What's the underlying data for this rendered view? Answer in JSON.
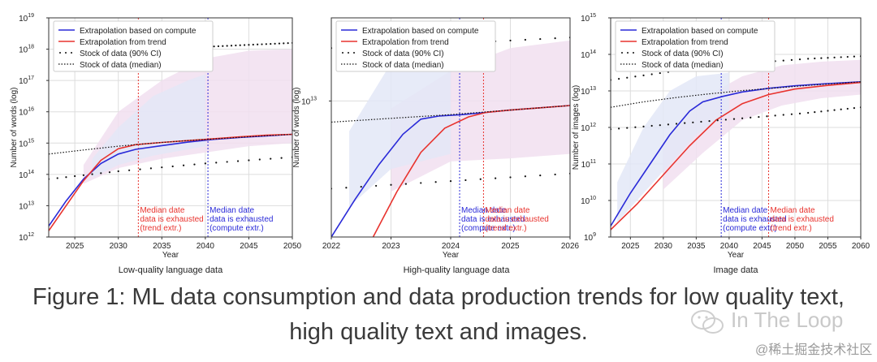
{
  "chart_data": [
    {
      "type": "line",
      "subtitle": "Low-quality language data",
      "xlabel": "Year",
      "ylabel": "Number of words (log)",
      "xlim": [
        2022,
        2050
      ],
      "ylim": [
        12,
        19
      ],
      "ylog": true,
      "xticks": [
        2025,
        2030,
        2035,
        2040,
        2045,
        2050
      ],
      "yticks": [
        12,
        13,
        14,
        15,
        16,
        17,
        18,
        19
      ],
      "grid": true,
      "legend": "top-left",
      "legend_entries": [
        "Extrapolation based on compute",
        "Extrapolation from trend",
        "Stock of data (90% CI)",
        "Stock of data (median)"
      ],
      "series": [
        {
          "name": "Extrapolation based on compute",
          "color": "#2a2ad8",
          "style": "solid",
          "points": [
            [
              2022,
              12.35
            ],
            [
              2024,
              13.15
            ],
            [
              2026,
              13.85
            ],
            [
              2028,
              14.35
            ],
            [
              2030,
              14.65
            ],
            [
              2032,
              14.8
            ],
            [
              2035,
              14.92
            ],
            [
              2038,
              15.03
            ],
            [
              2041,
              15.12
            ],
            [
              2044,
              15.18
            ],
            [
              2047,
              15.23
            ],
            [
              2050,
              15.28
            ]
          ]
        },
        {
          "name": "Extrapolation from trend",
          "color": "#e8332e",
          "style": "solid",
          "points": [
            [
              2022,
              12.2
            ],
            [
              2024,
              13.0
            ],
            [
              2026,
              13.8
            ],
            [
              2028,
              14.45
            ],
            [
              2030,
              14.82
            ],
            [
              2032,
              14.95
            ],
            [
              2035,
              15.02
            ],
            [
              2038,
              15.08
            ],
            [
              2041,
              15.14
            ],
            [
              2044,
              15.2
            ],
            [
              2047,
              15.25
            ],
            [
              2050,
              15.28
            ]
          ]
        },
        {
          "name": "Stock of data (median)",
          "color": "#111111",
          "style": "dotted",
          "points": [
            [
              2022,
              14.65
            ],
            [
              2026,
              14.78
            ],
            [
              2030,
              14.9
            ],
            [
              2034,
              15.0
            ],
            [
              2038,
              15.08
            ],
            [
              2042,
              15.15
            ],
            [
              2046,
              15.22
            ],
            [
              2050,
              15.28
            ]
          ]
        },
        {
          "name": "Stock of data (90% CI)",
          "color": "#111111",
          "style": "sparse-dots",
          "points": [
            [
              2022,
              13.85
            ],
            [
              2030,
              14.1
            ],
            [
              2040,
              14.35
            ],
            [
              2050,
              14.55
            ]
          ]
        },
        {
          "name": "Stock of data (90% CI)",
          "color": "#111111",
          "style": "sparse-dots",
          "points": [
            [
              2038,
              18.05
            ],
            [
              2042,
              18.1
            ],
            [
              2046,
              18.15
            ],
            [
              2050,
              18.2
            ]
          ]
        }
      ],
      "bands": [
        {
          "color": "#f1dff0",
          "points_upper": [
            [
              2026,
              14.3
            ],
            [
              2030,
              16.0
            ],
            [
              2035,
              17.0
            ],
            [
              2040,
              17.7
            ],
            [
              2045,
              17.95
            ],
            [
              2050,
              18.0
            ]
          ],
          "points_lower": [
            [
              2026,
              13.7
            ],
            [
              2030,
              14.2
            ],
            [
              2035,
              14.5
            ],
            [
              2040,
              14.7
            ],
            [
              2045,
              14.9
            ],
            [
              2050,
              15.0
            ]
          ]
        },
        {
          "color": "#e3e7f7",
          "points_upper": [
            [
              2027,
              14.5
            ],
            [
              2030,
              15.5
            ],
            [
              2034,
              16.5
            ],
            [
              2038,
              17.0
            ],
            [
              2040,
              17.2
            ]
          ],
          "points_lower": [
            [
              2027,
              13.9
            ],
            [
              2030,
              14.3
            ],
            [
              2034,
              14.6
            ],
            [
              2038,
              14.8
            ],
            [
              2040,
              14.9
            ]
          ]
        }
      ],
      "vlines": [
        {
          "x": 2032.3,
          "color": "#e8332e",
          "label": [
            "Median date",
            "data is exhausted",
            "(trend extr.)"
          ]
        },
        {
          "x": 2040.3,
          "color": "#2a2ad8",
          "label": [
            "Median date",
            "data is exhausted",
            "(compute extr.)"
          ]
        }
      ]
    },
    {
      "type": "line",
      "subtitle": "High-quality language data",
      "xlabel": "Year",
      "ylabel": "Number of words (log)",
      "xlim": [
        2022,
        2026
      ],
      "ylim": [
        12.1,
        13.55
      ],
      "ylog": true,
      "xticks": [
        2022,
        2023,
        2024,
        2025,
        2026
      ],
      "yticks": [
        13
      ],
      "grid": true,
      "legend": "top-left",
      "legend_entries": [
        "Extrapolation based on compute",
        "Extrapolation from trend",
        "Stock of data (90% CI)",
        "Stock of data (median)"
      ],
      "series": [
        {
          "name": "Extrapolation based on compute",
          "color": "#2a2ad8",
          "style": "solid",
          "points": [
            [
              2022,
              12.1
            ],
            [
              2022.4,
              12.35
            ],
            [
              2022.8,
              12.58
            ],
            [
              2023.2,
              12.78
            ],
            [
              2023.5,
              12.88
            ],
            [
              2023.8,
              12.9
            ],
            [
              2024.2,
              12.91
            ],
            [
              2024.6,
              12.925
            ],
            [
              2025,
              12.94
            ],
            [
              2025.5,
              12.955
            ],
            [
              2026,
              12.97
            ]
          ]
        },
        {
          "name": "Extrapolation from trend",
          "color": "#e8332e",
          "style": "solid",
          "points": [
            [
              2022.7,
              12.1
            ],
            [
              2023.1,
              12.4
            ],
            [
              2023.5,
              12.66
            ],
            [
              2023.9,
              12.82
            ],
            [
              2024.3,
              12.895
            ],
            [
              2024.6,
              12.925
            ],
            [
              2025,
              12.94
            ],
            [
              2025.5,
              12.955
            ],
            [
              2026,
              12.97
            ]
          ]
        },
        {
          "name": "Stock of data (median)",
          "color": "#111111",
          "style": "dotted",
          "points": [
            [
              2022,
              12.86
            ],
            [
              2023,
              12.885
            ],
            [
              2024,
              12.91
            ],
            [
              2025,
              12.94
            ],
            [
              2026,
              12.97
            ]
          ]
        },
        {
          "name": "Stock of data (90% CI)",
          "color": "#111111",
          "style": "sparse-dots",
          "points": [
            [
              2022,
              13.35
            ],
            [
              2024,
              13.38
            ],
            [
              2026,
              13.42
            ]
          ]
        },
        {
          "name": "Stock of data (90% CI)",
          "color": "#111111",
          "style": "sparse-dots",
          "points": [
            [
              2022,
              12.42
            ],
            [
              2024,
              12.47
            ],
            [
              2026,
              12.52
            ]
          ]
        }
      ],
      "bands": [
        {
          "color": "#f1dff0",
          "points_upper": [
            [
              2023,
              12.95
            ],
            [
              2024,
              13.2
            ],
            [
              2025,
              13.35
            ],
            [
              2026,
              13.4
            ]
          ],
          "points_lower": [
            [
              2023,
              12.4
            ],
            [
              2024,
              12.6
            ],
            [
              2025,
              12.62
            ],
            [
              2026,
              12.65
            ]
          ]
        },
        {
          "color": "#e3e7f7",
          "points_upper": [
            [
              2022.3,
              12.8
            ],
            [
              2023,
              13.25
            ],
            [
              2023.5,
              13.4
            ],
            [
              2024,
              13.45
            ]
          ],
          "points_lower": [
            [
              2022.3,
              12.3
            ],
            [
              2023,
              12.55
            ],
            [
              2023.5,
              12.6
            ],
            [
              2024,
              12.65
            ]
          ]
        }
      ],
      "vlines": [
        {
          "x": 2024.15,
          "color": "#2a2ad8",
          "label": [
            "Median date",
            "data is exhausted",
            "(compute extr.)"
          ]
        },
        {
          "x": 2024.55,
          "color": "#e8332e",
          "label": [
            "Median date",
            "data is exhausted",
            "(trend extr.)"
          ]
        }
      ]
    },
    {
      "type": "line",
      "subtitle": "Image data",
      "xlabel": "Year",
      "ylabel": "Number of images (log)",
      "xlim": [
        2022,
        2060
      ],
      "ylim": [
        9,
        15
      ],
      "ylog": true,
      "xticks": [
        2025,
        2030,
        2035,
        2040,
        2045,
        2050,
        2055,
        2060
      ],
      "yticks": [
        9,
        10,
        11,
        12,
        13,
        14,
        15
      ],
      "grid": true,
      "legend": "top-left",
      "legend_entries": [
        "Extrapolation based on compute",
        "Extrapolation from trend",
        "Stock of data (90% CI)",
        "Stock of data (median)"
      ],
      "series": [
        {
          "name": "Extrapolation based on compute",
          "color": "#2a2ad8",
          "style": "solid",
          "points": [
            [
              2022,
              9.3
            ],
            [
              2025,
              10.2
            ],
            [
              2028,
              11.0
            ],
            [
              2031,
              11.8
            ],
            [
              2034,
              12.45
            ],
            [
              2036,
              12.7
            ],
            [
              2039,
              12.85
            ],
            [
              2042,
              12.97
            ],
            [
              2046,
              13.07
            ],
            [
              2050,
              13.14
            ],
            [
              2055,
              13.2
            ],
            [
              2060,
              13.25
            ]
          ]
        },
        {
          "name": "Extrapolation from trend",
          "color": "#e8332e",
          "style": "solid",
          "points": [
            [
              2022,
              9.2
            ],
            [
              2026,
              9.9
            ],
            [
              2030,
              10.7
            ],
            [
              2034,
              11.5
            ],
            [
              2038,
              12.2
            ],
            [
              2042,
              12.65
            ],
            [
              2046,
              12.9
            ],
            [
              2050,
              13.05
            ],
            [
              2055,
              13.15
            ],
            [
              2060,
              13.23
            ]
          ]
        },
        {
          "name": "Stock of data (median)",
          "color": "#111111",
          "style": "dotted",
          "points": [
            [
              2022,
              12.55
            ],
            [
              2027,
              12.7
            ],
            [
              2032,
              12.82
            ],
            [
              2037,
              12.92
            ],
            [
              2042,
              13.01
            ],
            [
              2047,
              13.08
            ],
            [
              2052,
              13.15
            ],
            [
              2056,
              13.2
            ],
            [
              2060,
              13.25
            ]
          ]
        },
        {
          "name": "Stock of data (90% CI)",
          "color": "#111111",
          "style": "sparse-dots",
          "points": [
            [
              2022,
              13.3
            ],
            [
              2032,
              13.55
            ],
            [
              2042,
              13.75
            ],
            [
              2052,
              13.88
            ],
            [
              2060,
              13.95
            ]
          ]
        },
        {
          "name": "Stock of data (90% CI)",
          "color": "#111111",
          "style": "sparse-dots",
          "points": [
            [
              2022,
              11.95
            ],
            [
              2032,
              12.1
            ],
            [
              2042,
              12.25
            ],
            [
              2052,
              12.4
            ],
            [
              2060,
              12.55
            ]
          ]
        }
      ],
      "bands": [
        {
          "color": "#f1dff0",
          "points_upper": [
            [
              2030,
              11.5
            ],
            [
              2036,
              12.8
            ],
            [
              2042,
              13.4
            ],
            [
              2048,
              13.7
            ],
            [
              2054,
              13.8
            ],
            [
              2060,
              13.85
            ]
          ],
          "points_lower": [
            [
              2030,
              10.3
            ],
            [
              2036,
              11.3
            ],
            [
              2042,
              12.2
            ],
            [
              2048,
              12.6
            ],
            [
              2054,
              12.8
            ],
            [
              2060,
              12.9
            ]
          ]
        },
        {
          "color": "#e3e7f7",
          "points_upper": [
            [
              2023,
              10.5
            ],
            [
              2027,
              12.0
            ],
            [
              2031,
              13.0
            ],
            [
              2035,
              13.4
            ],
            [
              2040,
              13.5
            ]
          ],
          "points_lower": [
            [
              2023,
              9.4
            ],
            [
              2027,
              10.2
            ],
            [
              2031,
              11.0
            ],
            [
              2035,
              11.8
            ],
            [
              2040,
              12.4
            ]
          ]
        }
      ],
      "vlines": [
        {
          "x": 2038.8,
          "color": "#2a2ad8",
          "label": [
            "Median date",
            "data is exhausted",
            "(compute extr.)"
          ]
        },
        {
          "x": 2046.0,
          "color": "#e8332e",
          "label": [
            "Median date",
            "data is exhausted",
            "(trend extr.)"
          ]
        }
      ]
    }
  ],
  "caption": {
    "line1": "Figure 1: ML data consumption and data production trends for low quality text,",
    "line2": "high quality text and images."
  },
  "watermark": {
    "name": "In The Loop",
    "site": "@稀土掘金技术社区",
    "icon": "wechat-icon"
  }
}
